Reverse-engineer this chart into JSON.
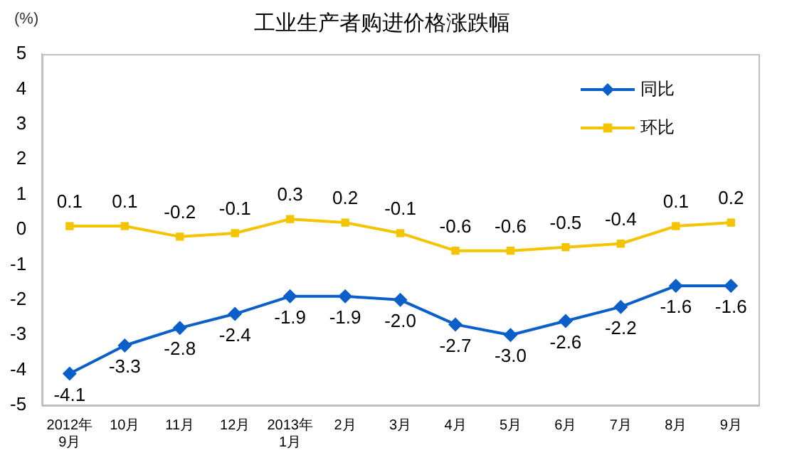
{
  "chart_data": {
    "type": "line",
    "title": "工业生产者购进价格涨跌幅",
    "ylabel": "(%)",
    "categories": [
      "2012年\n9月",
      "10月",
      "11月",
      "12月",
      "2013年\n1月",
      "2月",
      "3月",
      "4月",
      "5月",
      "6月",
      "7月",
      "8月",
      "9月"
    ],
    "series": [
      {
        "name": "同比",
        "color": "#0a5fc8",
        "marker": "diamond",
        "values": [
          -4.1,
          -3.3,
          -2.8,
          -2.4,
          -1.9,
          -1.9,
          -2.0,
          -2.7,
          -3.0,
          -2.6,
          -2.2,
          -1.6,
          -1.6
        ],
        "value_labels": [
          "-4.1",
          "-3.3",
          "-2.8",
          "-2.4",
          "-1.9",
          "-1.9",
          "-2.0",
          "-2.7",
          "-3.0",
          "-2.6",
          "-2.2",
          "-1.6",
          "-1.6"
        ]
      },
      {
        "name": "环比",
        "color": "#f5c400",
        "marker": "square",
        "values": [
          0.1,
          0.1,
          -0.2,
          -0.1,
          0.3,
          0.2,
          -0.1,
          -0.6,
          -0.6,
          -0.5,
          -0.4,
          0.1,
          0.2
        ],
        "value_labels": [
          "0.1",
          "0.1",
          "-0.2",
          "-0.1",
          "0.3",
          "0.2",
          "-0.1",
          "-0.6",
          "-0.6",
          "-0.5",
          "-0.4",
          "0.1",
          "0.2"
        ]
      }
    ],
    "ylim": [
      -5,
      5
    ],
    "yticks": [
      -5,
      -4,
      -3,
      -2,
      -1,
      0,
      1,
      2,
      3,
      4,
      5
    ],
    "grid": false,
    "legend": "top right",
    "line_style": "solid"
  }
}
